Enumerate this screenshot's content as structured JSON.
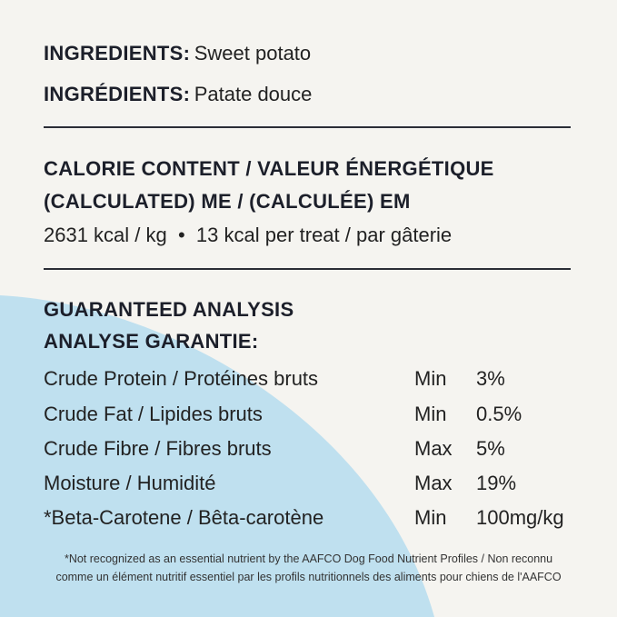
{
  "colors": {
    "background": "#f5f4f0",
    "accent_blob": "#bfe0ef",
    "text": "#1c1f2a"
  },
  "ingredients": [
    {
      "label": "INGREDIENTS:",
      "value": "Sweet potato"
    },
    {
      "label": "INGRÉDIENTS:",
      "value": "Patate douce"
    }
  ],
  "calorie": {
    "heading_line1": "CALORIE CONTENT / VALEUR ÉNERGÉTIQUE",
    "heading_line2": "(CALCULATED) ME / (CALCULÉE) EM",
    "values": "2631 kcal / kg  •  13 kcal per treat / par gâterie"
  },
  "analysis": {
    "heading_line1": "GUARANTEED ANALYSIS",
    "heading_line2": "ANALYSE GARANTIE:",
    "rows": [
      {
        "nutrient": "Crude Protein / Protéines bruts",
        "qualifier": "Min",
        "value": "3%"
      },
      {
        "nutrient": "Crude Fat / Lipides bruts",
        "qualifier": "Min",
        "value": "0.5%"
      },
      {
        "nutrient": "Crude Fibre / Fibres bruts",
        "qualifier": "Max",
        "value": "5%"
      },
      {
        "nutrient": "Moisture / Humidité",
        "qualifier": "Max",
        "value": "19%"
      },
      {
        "nutrient": "*Beta-Carotene / Bêta-carotène",
        "qualifier": "Min",
        "value": "100mg/kg"
      }
    ]
  },
  "footnote": {
    "line1": "*Not recognized as an essential nutrient by the AAFCO Dog Food Nutrient Profiles / Non reconnu",
    "line2": "comme un élément nutritif essentiel par les profils nutritionnels des aliments pour chiens de l'AAFCO"
  }
}
